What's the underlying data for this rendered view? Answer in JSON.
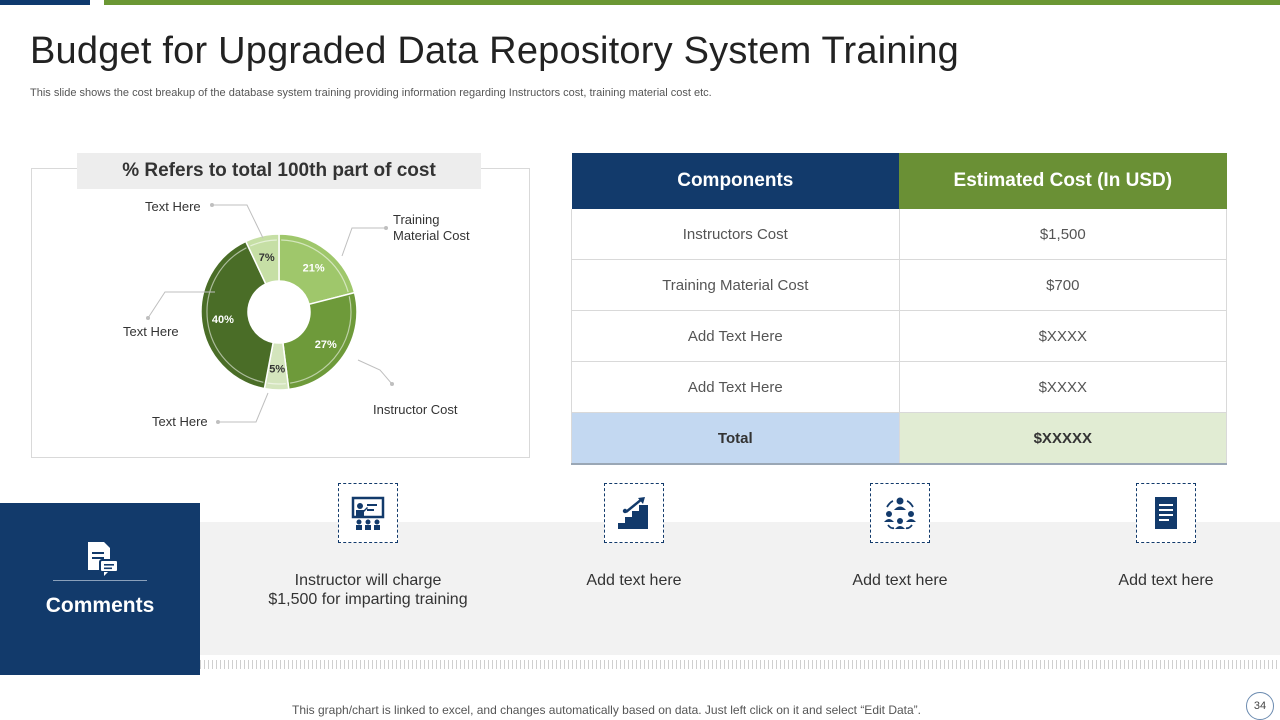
{
  "slide": {
    "title": "Budget for Upgraded Data Repository System Training",
    "subtitle": "This slide shows the cost breakup of the database system training providing information regarding Instructors cost, training material cost etc.",
    "footer": "This graph/chart is linked to excel, and changes automatically based on data. Just left click on it and select “Edit Data”.",
    "page_number": "34"
  },
  "chart_data": {
    "type": "pie",
    "title": "% Refers to total 100th part of cost",
    "slices": [
      {
        "label": "Training Material Cost",
        "value": 21,
        "value_label": "21%",
        "color": "#9fc76b"
      },
      {
        "label": "Instructor Cost",
        "value": 27,
        "value_label": "27%",
        "color": "#6e9a3a"
      },
      {
        "label": "Text Here",
        "value": 5,
        "value_label": "5%",
        "color": "#d4e5bd"
      },
      {
        "label": "Text Here",
        "value": 40,
        "value_label": "40%",
        "color": "#4a6d27"
      },
      {
        "label": "Text Here",
        "value": 7,
        "value_label": "7%",
        "color": "#c6dfa5"
      }
    ]
  },
  "table": {
    "headers": [
      "Components",
      "Estimated Cost (In USD)"
    ],
    "rows": [
      [
        "Instructors Cost",
        "$1,500"
      ],
      [
        "Training Material Cost",
        "$700"
      ],
      [
        "Add Text Here",
        "$XXXX"
      ],
      [
        "Add Text Here",
        "$XXXX"
      ]
    ],
    "total": [
      "Total",
      "$XXXXX"
    ]
  },
  "comments": {
    "label": "Comments",
    "items": [
      {
        "icon": "presentation-icon",
        "text": "Instructor  will charge $1,500 for imparting training"
      },
      {
        "icon": "stairs-growth-icon",
        "text": "Add text here"
      },
      {
        "icon": "team-network-icon",
        "text": "Add text here"
      },
      {
        "icon": "document-icon",
        "text": "Add text here"
      }
    ]
  },
  "colors": {
    "navy": "#123a6b",
    "green": "#6a9035",
    "total_blue": "#c3d8f1",
    "total_green": "#e1ecd3"
  }
}
